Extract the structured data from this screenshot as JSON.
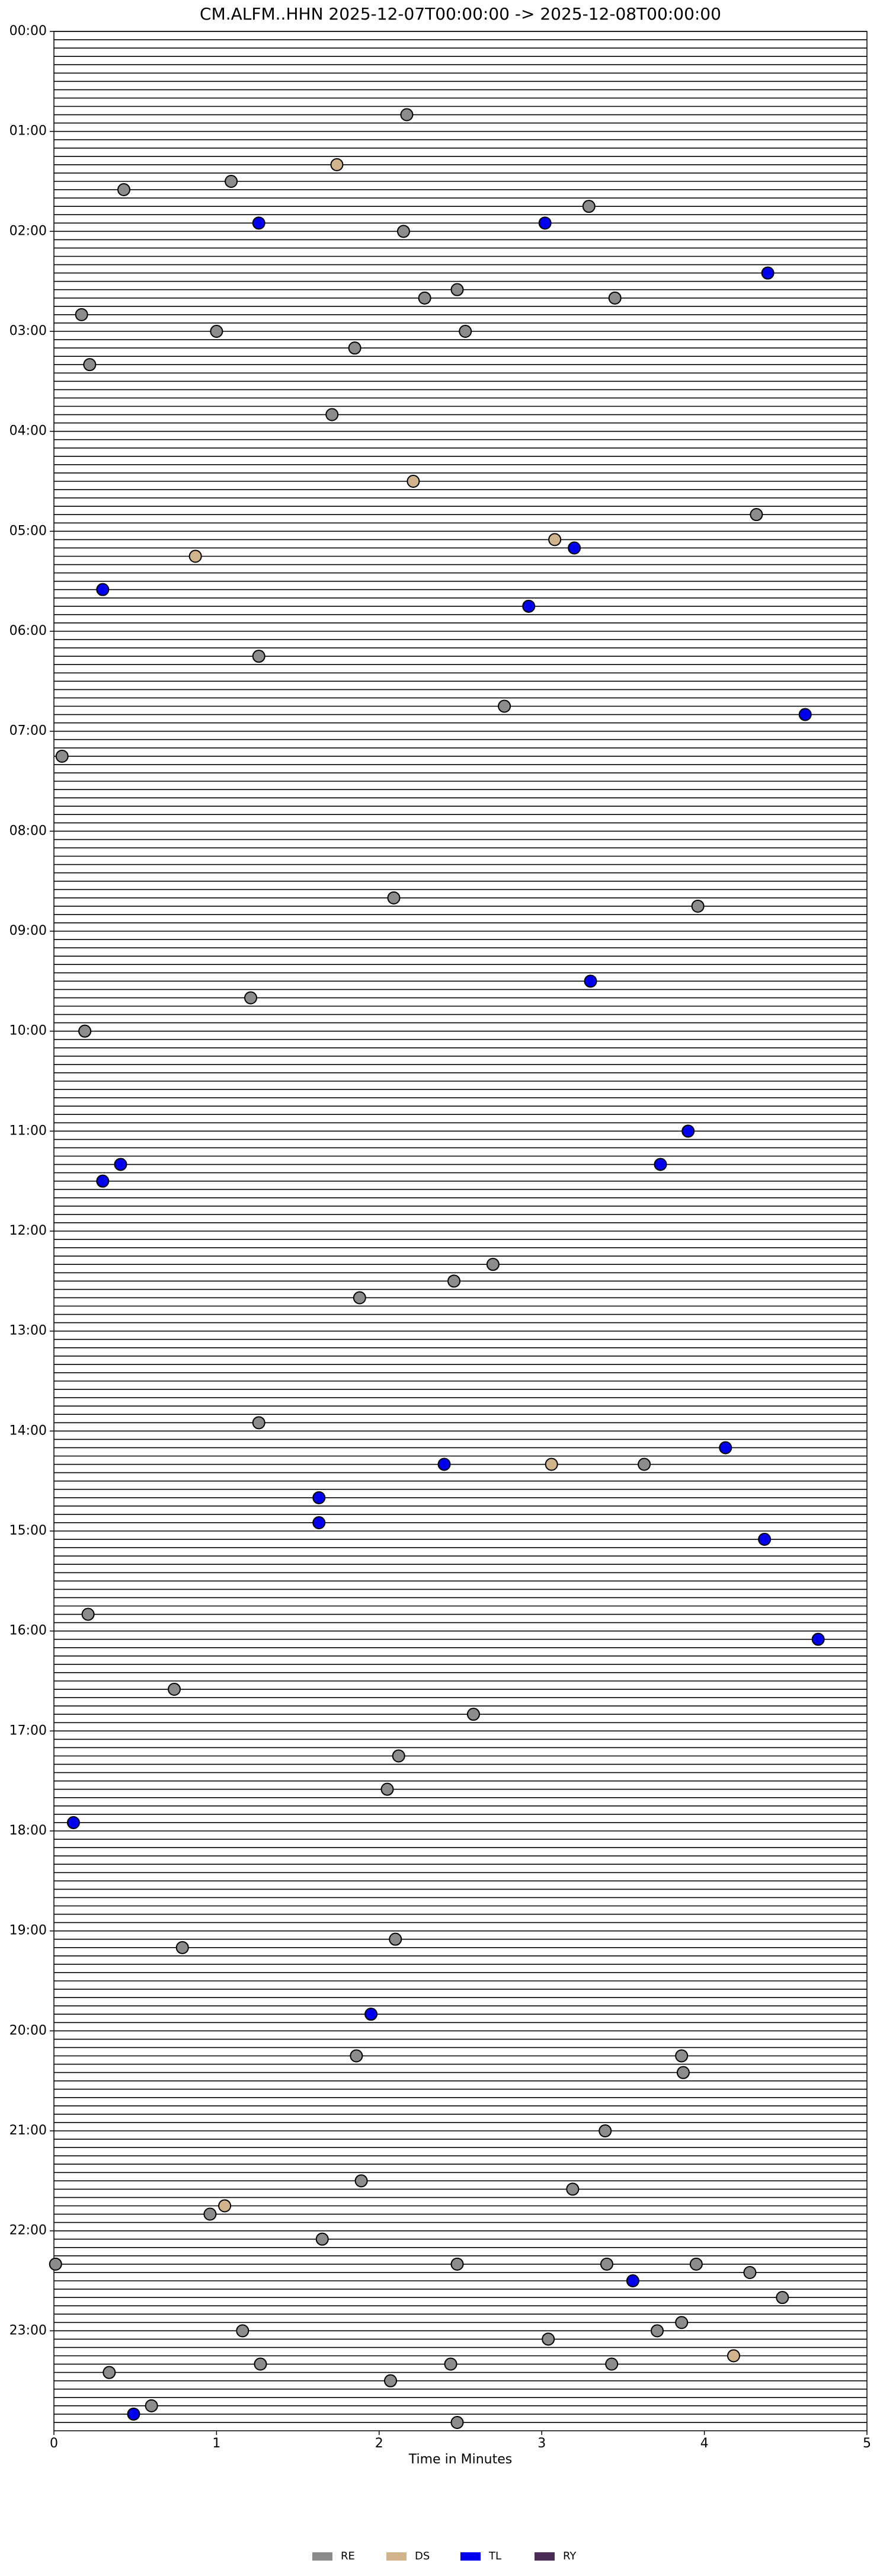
{
  "chart_data": {
    "type": "scatter",
    "title": "CM.ALFM..HHN  2025-12-07T00:00:00 -> 2025-12-08T00:00:00",
    "xlabel": "Time in Minutes",
    "xlim": [
      0,
      5
    ],
    "xticks": [
      0,
      1,
      2,
      3,
      4,
      5
    ],
    "ylim": [
      24,
      0
    ],
    "yticks": [
      {
        "value": 0,
        "label": "00:00"
      },
      {
        "value": 1,
        "label": "01:00"
      },
      {
        "value": 2,
        "label": "02:00"
      },
      {
        "value": 3,
        "label": "03:00"
      },
      {
        "value": 4,
        "label": "04:00"
      },
      {
        "value": 5,
        "label": "05:00"
      },
      {
        "value": 6,
        "label": "06:00"
      },
      {
        "value": 7,
        "label": "07:00"
      },
      {
        "value": 8,
        "label": "08:00"
      },
      {
        "value": 9,
        "label": "09:00"
      },
      {
        "value": 10,
        "label": "10:00"
      },
      {
        "value": 11,
        "label": "11:00"
      },
      {
        "value": 12,
        "label": "12:00"
      },
      {
        "value": 13,
        "label": "13:00"
      },
      {
        "value": 14,
        "label": "14:00"
      },
      {
        "value": 15,
        "label": "15:00"
      },
      {
        "value": 16,
        "label": "16:00"
      },
      {
        "value": 17,
        "label": "17:00"
      },
      {
        "value": 18,
        "label": "18:00"
      },
      {
        "value": 19,
        "label": "19:00"
      },
      {
        "value": 20,
        "label": "20:00"
      },
      {
        "value": 21,
        "label": "21:00"
      },
      {
        "value": 22,
        "label": "22:00"
      },
      {
        "value": 23,
        "label": "23:00"
      }
    ],
    "legend": "bottom",
    "series": [
      {
        "name": "RE",
        "color": "#8c8c8c",
        "x": [
          2.17,
          1.09,
          0.43,
          3.29,
          2.15,
          2.48,
          2.28,
          3.45,
          0.17,
          1.0,
          2.53,
          1.85,
          0.22,
          1.71,
          4.32,
          1.26,
          2.77,
          0.05,
          2.09,
          3.96,
          1.21,
          0.19,
          2.7,
          2.46,
          1.88,
          1.26,
          3.63,
          0.21,
          0.74,
          2.58,
          2.12,
          2.05,
          0.79,
          2.1,
          1.86,
          3.86,
          3.87,
          3.39,
          1.89,
          3.19,
          0.96,
          1.65,
          0.01,
          2.48,
          3.4,
          3.95,
          4.28,
          4.48,
          3.86,
          1.16,
          3.04,
          3.71,
          1.27,
          2.44,
          3.43,
          0.34,
          2.07,
          0.6,
          2.48
        ],
        "y": [
          0.833,
          1.5,
          1.583,
          1.75,
          2.0,
          2.583,
          2.667,
          2.667,
          2.833,
          3.0,
          3.0,
          3.167,
          3.333,
          3.833,
          4.833,
          6.25,
          6.75,
          7.25,
          8.667,
          8.75,
          9.667,
          10.0,
          12.333,
          12.5,
          12.667,
          13.917,
          14.333,
          15.833,
          16.583,
          16.833,
          17.25,
          17.583,
          19.167,
          19.083,
          20.25,
          20.25,
          20.417,
          21.0,
          21.5,
          21.583,
          21.833,
          22.083,
          22.333,
          22.333,
          22.333,
          22.333,
          22.417,
          22.667,
          22.917,
          23.0,
          23.083,
          23.0,
          23.333,
          23.333,
          23.333,
          23.417,
          23.5,
          23.75,
          23.917
        ]
      },
      {
        "name": "DS",
        "color": "#d2b48c",
        "x": [
          1.74,
          2.21,
          3.08,
          0.87,
          3.06,
          1.05,
          4.18
        ],
        "y": [
          1.333,
          4.5,
          5.083,
          5.25,
          14.333,
          21.75,
          23.25
        ]
      },
      {
        "name": "TL",
        "color": "#0000ee",
        "x": [
          1.26,
          3.02,
          4.39,
          3.2,
          0.3,
          2.92,
          4.62,
          3.3,
          3.9,
          0.41,
          3.73,
          0.3,
          4.13,
          2.4,
          1.63,
          1.63,
          4.37,
          4.7,
          0.12,
          1.95,
          3.56,
          0.49
        ],
        "y": [
          1.917,
          1.917,
          2.417,
          5.167,
          5.583,
          5.75,
          6.833,
          9.5,
          11.0,
          11.333,
          11.333,
          11.5,
          14.167,
          14.333,
          14.667,
          14.917,
          15.083,
          16.083,
          17.917,
          19.833,
          22.5,
          23.833
        ]
      },
      {
        "name": "RY",
        "color": "#4b2c55",
        "x": [],
        "y": []
      }
    ]
  }
}
